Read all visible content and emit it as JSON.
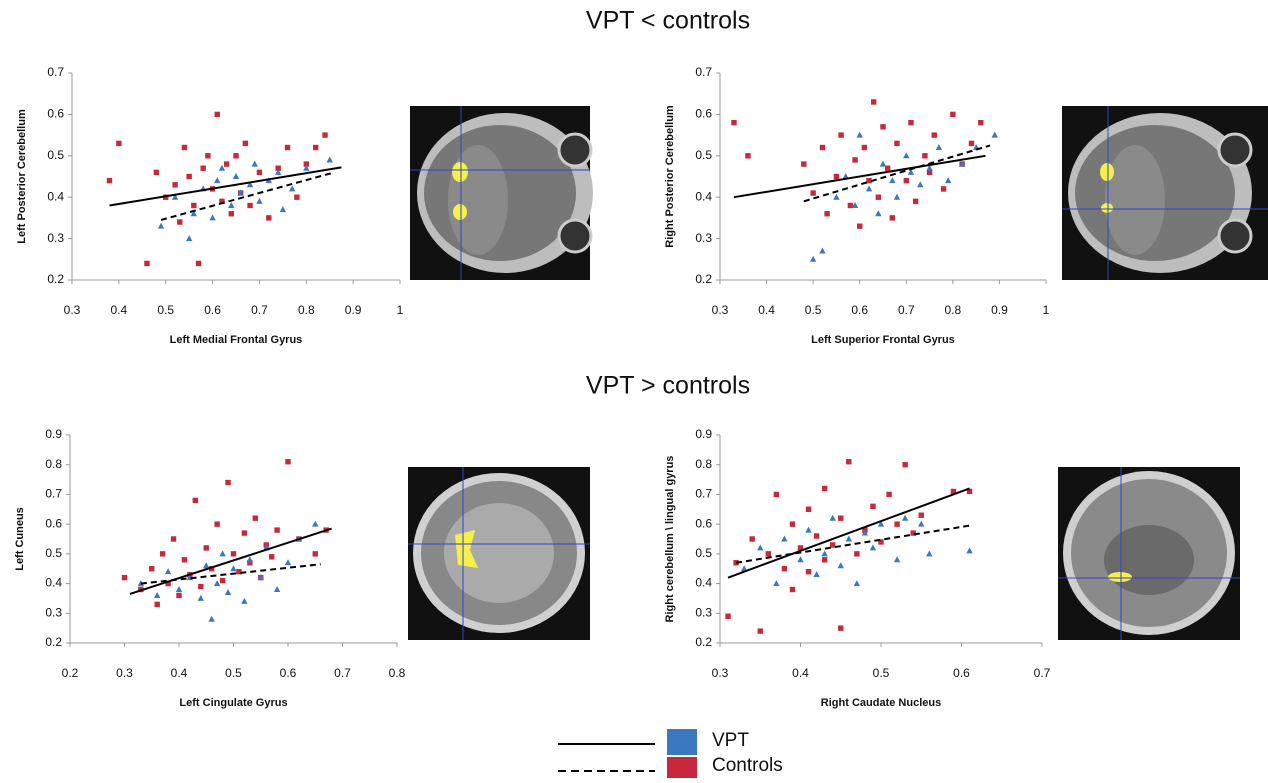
{
  "section_titles": [
    "VPT < controls",
    "VPT > controls"
  ],
  "chart_data": [
    {
      "type": "scatter",
      "x_label": "Left Medial Frontal Gyrus",
      "y_label": "Left Posterior Cerebellum",
      "xlim": [
        0.3,
        1
      ],
      "xticks": [
        0.3,
        0.4,
        0.5,
        0.6,
        0.7,
        0.8,
        0.9,
        1
      ],
      "ylim": [
        0.2,
        0.7
      ],
      "yticks": [
        0.2,
        0.3,
        0.4,
        0.5,
        0.6,
        0.7
      ],
      "series": [
        {
          "name": "VPT",
          "color": "#3a78c0",
          "marker": "triangle",
          "line_style": "solid",
          "x": [
            0.49,
            0.52,
            0.55,
            0.56,
            0.58,
            0.6,
            0.61,
            0.62,
            0.64,
            0.65,
            0.66,
            0.68,
            0.69,
            0.7,
            0.72,
            0.74,
            0.75,
            0.77,
            0.8,
            0.85
          ],
          "values": [
            0.33,
            0.4,
            0.3,
            0.36,
            0.42,
            0.35,
            0.44,
            0.47,
            0.38,
            0.45,
            0.41,
            0.43,
            0.48,
            0.39,
            0.44,
            0.46,
            0.37,
            0.42,
            0.47,
            0.49
          ],
          "fit": {
            "x": [
              0.38,
              0.875
            ],
            "values": [
              0.38,
              0.472
            ]
          }
        },
        {
          "name": "Controls",
          "color": "#c8283c",
          "marker": "square",
          "line_style": "dashed",
          "x": [
            0.38,
            0.4,
            0.46,
            0.48,
            0.5,
            0.52,
            0.53,
            0.54,
            0.55,
            0.56,
            0.57,
            0.58,
            0.59,
            0.6,
            0.61,
            0.62,
            0.63,
            0.64,
            0.65,
            0.66,
            0.67,
            0.68,
            0.7,
            0.72,
            0.74,
            0.76,
            0.78,
            0.8,
            0.82,
            0.84
          ],
          "values": [
            0.44,
            0.53,
            0.24,
            0.46,
            0.4,
            0.43,
            0.34,
            0.52,
            0.45,
            0.38,
            0.24,
            0.47,
            0.5,
            0.42,
            0.6,
            0.39,
            0.48,
            0.36,
            0.5,
            0.41,
            0.53,
            0.38,
            0.46,
            0.35,
            0.47,
            0.52,
            0.4,
            0.48,
            0.52,
            0.55
          ],
          "fit": {
            "x": [
              0.49,
              0.86
            ],
            "values": [
              0.345,
              0.46
            ]
          }
        }
      ]
    },
    {
      "type": "scatter",
      "x_label": "Left Superior Frontal Gyrus",
      "y_label": "Right Posterior Cerebellum",
      "xlim": [
        0.3,
        1
      ],
      "xticks": [
        0.3,
        0.4,
        0.5,
        0.6,
        0.7,
        0.8,
        0.9,
        1
      ],
      "ylim": [
        0.2,
        0.7
      ],
      "yticks": [
        0.2,
        0.3,
        0.4,
        0.5,
        0.6,
        0.7
      ],
      "series": [
        {
          "name": "VPT",
          "color": "#3a78c0",
          "marker": "triangle",
          "line_style": "solid",
          "x": [
            0.5,
            0.52,
            0.55,
            0.57,
            0.59,
            0.6,
            0.62,
            0.64,
            0.65,
            0.67,
            0.68,
            0.7,
            0.71,
            0.73,
            0.75,
            0.77,
            0.79,
            0.82,
            0.85,
            0.89
          ],
          "values": [
            0.25,
            0.27,
            0.4,
            0.45,
            0.38,
            0.55,
            0.42,
            0.36,
            0.48,
            0.44,
            0.4,
            0.5,
            0.46,
            0.43,
            0.47,
            0.52,
            0.44,
            0.48,
            0.52,
            0.55
          ],
          "fit": {
            "x": [
              0.33,
              0.87
            ],
            "values": [
              0.4,
              0.5
            ]
          }
        },
        {
          "name": "Controls",
          "color": "#c8283c",
          "marker": "square",
          "line_style": "dashed",
          "x": [
            0.33,
            0.36,
            0.48,
            0.5,
            0.52,
            0.53,
            0.55,
            0.56,
            0.58,
            0.59,
            0.6,
            0.61,
            0.62,
            0.63,
            0.64,
            0.65,
            0.66,
            0.67,
            0.68,
            0.7,
            0.71,
            0.72,
            0.74,
            0.75,
            0.76,
            0.78,
            0.8,
            0.82,
            0.84,
            0.86
          ],
          "values": [
            0.58,
            0.5,
            0.48,
            0.41,
            0.52,
            0.36,
            0.45,
            0.55,
            0.38,
            0.49,
            0.33,
            0.52,
            0.44,
            0.63,
            0.4,
            0.57,
            0.47,
            0.35,
            0.53,
            0.44,
            0.58,
            0.39,
            0.5,
            0.46,
            0.55,
            0.42,
            0.6,
            0.48,
            0.53,
            0.58
          ],
          "fit": {
            "x": [
              0.48,
              0.88
            ],
            "values": [
              0.39,
              0.525
            ]
          }
        }
      ]
    },
    {
      "type": "scatter",
      "x_label": "Left Cingulate Gyrus",
      "y_label": "Left Cuneus",
      "xlim": [
        0.2,
        0.8
      ],
      "xticks": [
        0.2,
        0.3,
        0.4,
        0.5,
        0.6,
        0.7,
        0.8
      ],
      "ylim": [
        0.2,
        0.9
      ],
      "yticks": [
        0.2,
        0.3,
        0.4,
        0.5,
        0.6,
        0.7,
        0.8,
        0.9
      ],
      "series": [
        {
          "name": "VPT",
          "color": "#3a78c0",
          "marker": "triangle",
          "line_style": "solid",
          "x": [
            0.33,
            0.36,
            0.38,
            0.4,
            0.42,
            0.44,
            0.45,
            0.46,
            0.47,
            0.48,
            0.49,
            0.5,
            0.52,
            0.53,
            0.55,
            0.56,
            0.58,
            0.6,
            0.62,
            0.65
          ],
          "values": [
            0.4,
            0.36,
            0.44,
            0.38,
            0.42,
            0.35,
            0.46,
            0.28,
            0.4,
            0.5,
            0.37,
            0.45,
            0.34,
            0.48,
            0.42,
            0.52,
            0.38,
            0.47,
            0.55,
            0.6
          ],
          "fit": {
            "x": [
              0.31,
              0.68
            ],
            "values": [
              0.365,
              0.585
            ]
          }
        },
        {
          "name": "Controls",
          "color": "#c8283c",
          "marker": "square",
          "line_style": "dashed",
          "x": [
            0.3,
            0.33,
            0.35,
            0.36,
            0.37,
            0.38,
            0.39,
            0.4,
            0.41,
            0.42,
            0.43,
            0.44,
            0.45,
            0.46,
            0.47,
            0.48,
            0.49,
            0.5,
            0.51,
            0.52,
            0.53,
            0.54,
            0.55,
            0.56,
            0.57,
            0.58,
            0.6,
            0.62,
            0.65,
            0.67
          ],
          "values": [
            0.42,
            0.38,
            0.45,
            0.33,
            0.5,
            0.4,
            0.55,
            0.36,
            0.48,
            0.43,
            0.68,
            0.39,
            0.52,
            0.45,
            0.6,
            0.41,
            0.74,
            0.5,
            0.44,
            0.57,
            0.47,
            0.62,
            0.42,
            0.53,
            0.49,
            0.58,
            0.81,
            0.55,
            0.5,
            0.58
          ],
          "fit": {
            "x": [
              0.33,
              0.66
            ],
            "values": [
              0.4,
              0.465
            ]
          }
        }
      ]
    },
    {
      "type": "scatter",
      "x_label": "Right Caudate Nucleus",
      "y_label": "Right cerebellum \\ lingual gyrus",
      "xlim": [
        0.3,
        0.7
      ],
      "xticks": [
        0.3,
        0.4,
        0.5,
        0.6,
        0.7
      ],
      "ylim": [
        0.2,
        0.9
      ],
      "yticks": [
        0.2,
        0.3,
        0.4,
        0.5,
        0.6,
        0.7,
        0.8,
        0.9
      ],
      "series": [
        {
          "name": "VPT",
          "color": "#3a78c0",
          "marker": "triangle",
          "line_style": "solid",
          "x": [
            0.33,
            0.35,
            0.37,
            0.38,
            0.4,
            0.41,
            0.42,
            0.43,
            0.44,
            0.45,
            0.46,
            0.47,
            0.48,
            0.49,
            0.5,
            0.52,
            0.53,
            0.55,
            0.56,
            0.61
          ],
          "values": [
            0.45,
            0.52,
            0.4,
            0.55,
            0.48,
            0.58,
            0.43,
            0.5,
            0.62,
            0.46,
            0.55,
            0.4,
            0.57,
            0.52,
            0.6,
            0.48,
            0.62,
            0.6,
            0.5,
            0.51
          ],
          "fit": {
            "x": [
              0.31,
              0.61
            ],
            "values": [
              0.42,
              0.72
            ]
          }
        },
        {
          "name": "Controls",
          "color": "#c8283c",
          "marker": "square",
          "line_style": "dashed",
          "x": [
            0.31,
            0.32,
            0.34,
            0.35,
            0.36,
            0.37,
            0.38,
            0.39,
            0.39,
            0.4,
            0.41,
            0.41,
            0.42,
            0.43,
            0.43,
            0.44,
            0.45,
            0.45,
            0.46,
            0.47,
            0.48,
            0.49,
            0.5,
            0.51,
            0.52,
            0.53,
            0.54,
            0.55,
            0.59,
            0.61
          ],
          "values": [
            0.29,
            0.47,
            0.55,
            0.24,
            0.5,
            0.7,
            0.45,
            0.6,
            0.38,
            0.52,
            0.65,
            0.44,
            0.56,
            0.48,
            0.72,
            0.53,
            0.62,
            0.25,
            0.81,
            0.5,
            0.58,
            0.66,
            0.54,
            0.7,
            0.6,
            0.8,
            0.57,
            0.63,
            0.71,
            0.71
          ],
          "fit": {
            "x": [
              0.32,
              0.61
            ],
            "values": [
              0.47,
              0.595
            ]
          }
        }
      ]
    }
  ]
}
